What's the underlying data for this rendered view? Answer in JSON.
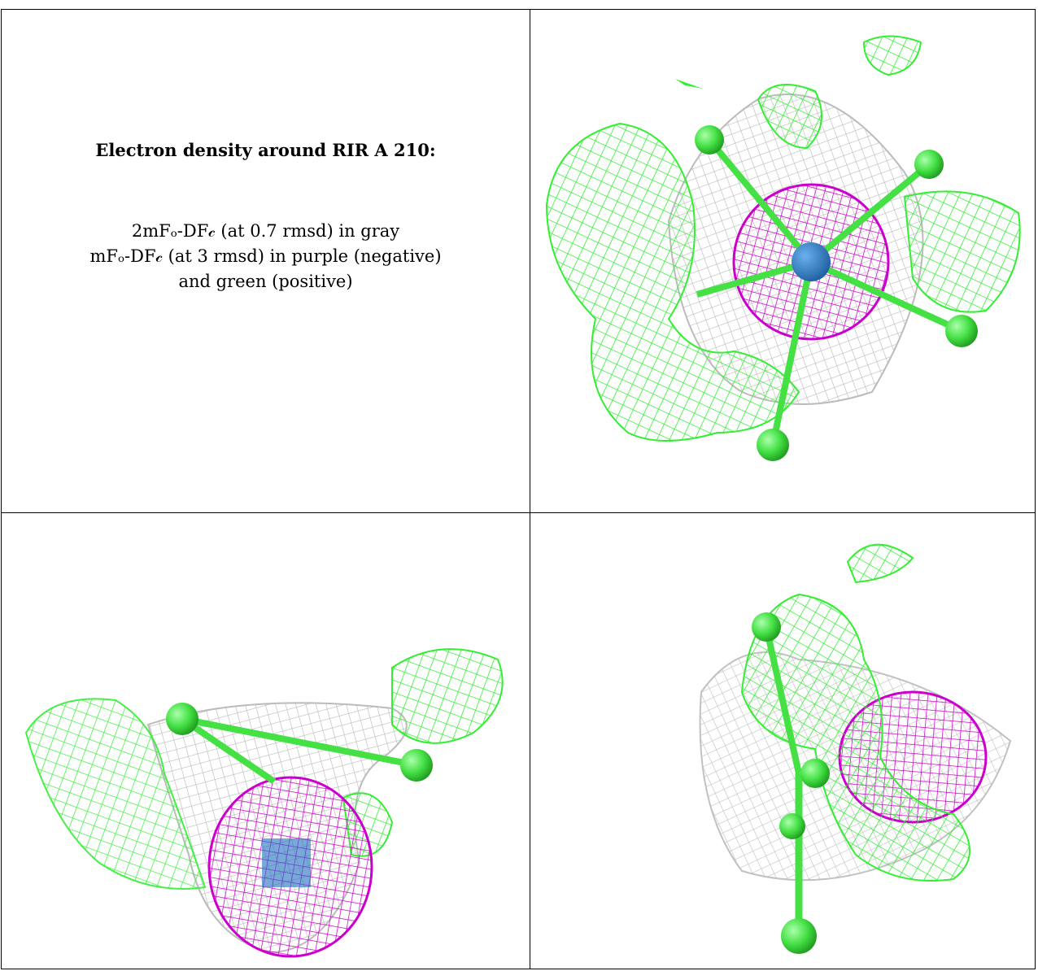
{
  "caption": {
    "title": "Electron density around RIR A 210:",
    "line1": "2mFₒ-DF𝒸 (at 0.7 rmsd) in gray",
    "line2": "mFₒ-DF𝒸 (at 3 rmsd) in purple (negative)",
    "line3": "and green (positive)"
  },
  "colors": {
    "positive_density": "#33ee33",
    "negative_density": "#cc00cc",
    "map_2fofc": "#bbbbbb",
    "atom": "#44e044",
    "metal": "#1f6fbf"
  },
  "panels": [
    {
      "view": "top-right"
    },
    {
      "view": "bottom-left"
    },
    {
      "view": "bottom-right"
    }
  ]
}
